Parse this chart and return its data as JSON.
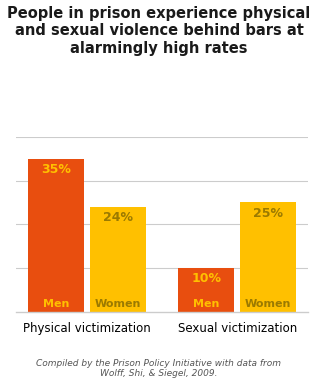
{
  "title": "People in prison experience physical\nand sexual violence behind bars at\nalarmingly high rates",
  "categories": [
    "Physical victimization",
    "Sexual victimization"
  ],
  "men_values": [
    35,
    10
  ],
  "women_values": [
    24,
    25
  ],
  "men_color": "#E84E0F",
  "women_color": "#FFC000",
  "men_label_color": "#FFC000",
  "women_label_color": "#9B7A00",
  "men_label": "Men",
  "women_label": "Women",
  "ylim": [
    0,
    40
  ],
  "yticks": [
    0,
    10,
    20,
    30,
    40
  ],
  "footnote": "Compiled by the Prison Policy Initiative with data from\nWolff, Shi, & Siegel, 2009.",
  "background_color": "#ffffff",
  "grid_color": "#cccccc"
}
